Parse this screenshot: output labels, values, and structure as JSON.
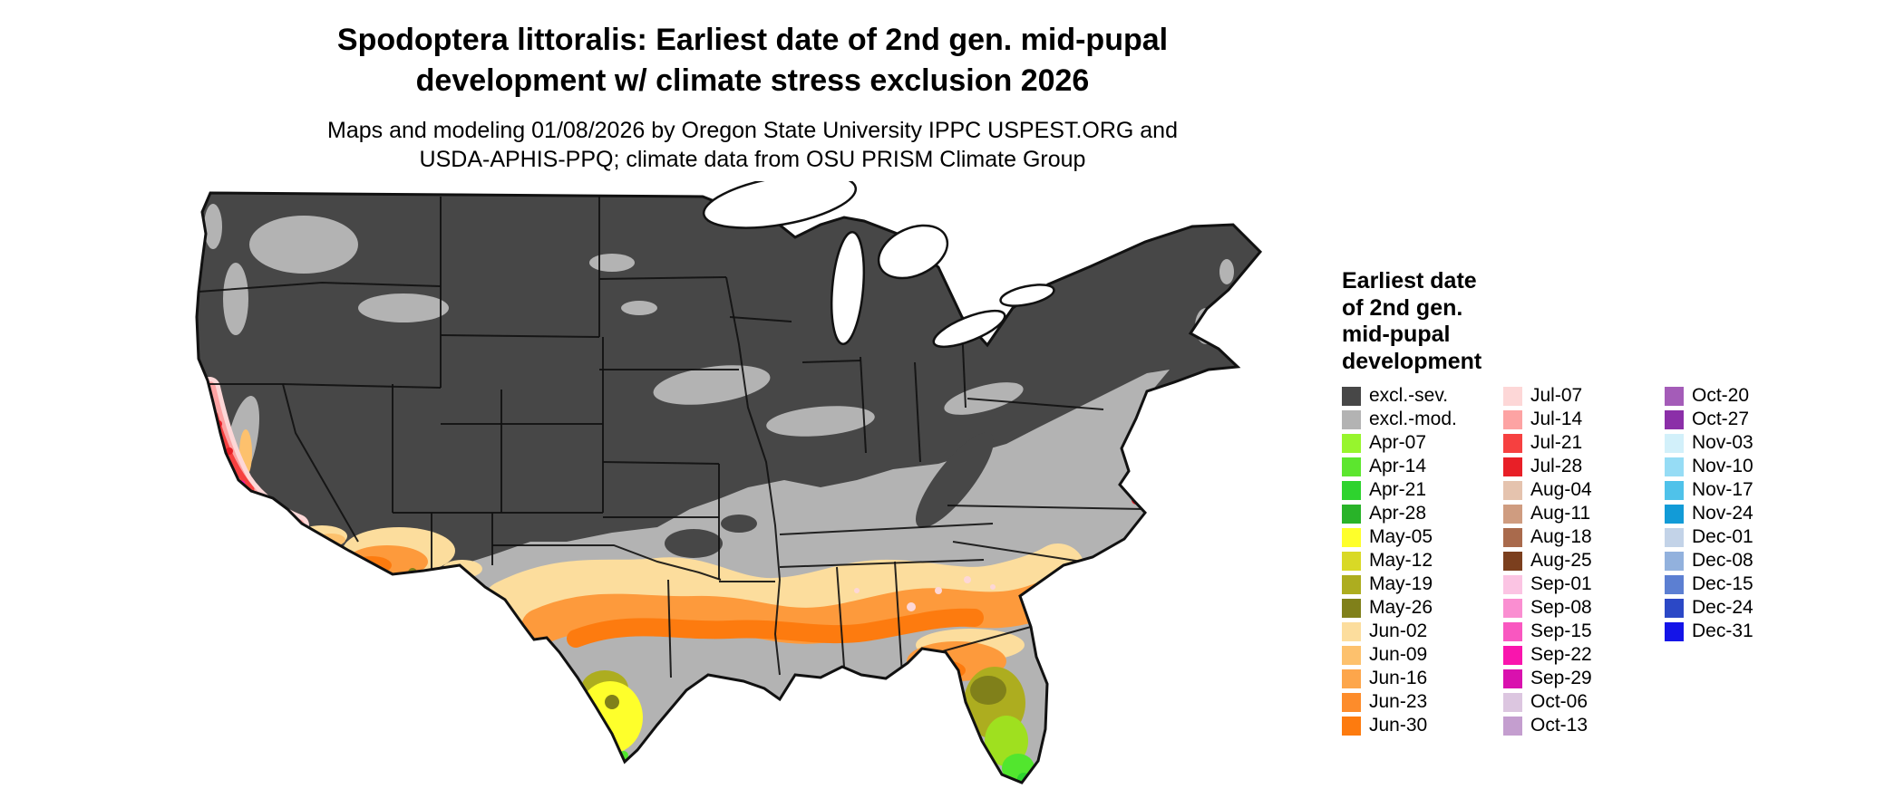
{
  "title": {
    "line1": "Spodoptera littoralis: Earliest date of 2nd gen. mid-pupal",
    "line2": "development w/ climate stress exclusion 2026"
  },
  "subtitle": {
    "line1": "Maps and modeling 01/08/2026 by Oregon State University IPPC USPEST.ORG and",
    "line2": "USDA-APHIS-PPQ; climate data from OSU PRISM Climate Group"
  },
  "legend": {
    "title_lines": [
      "Earliest date",
      "of 2nd gen.",
      "mid-pupal",
      "development"
    ],
    "columns": [
      {
        "items": [
          {
            "label": "excl.-sev.",
            "color": "#474747"
          },
          {
            "label": "excl.-mod.",
            "color": "#b3b3b3"
          },
          {
            "label": "Apr-07",
            "color": "#97f52d"
          },
          {
            "label": "Apr-14",
            "color": "#5ce62e"
          },
          {
            "label": "Apr-21",
            "color": "#2ed32e"
          },
          {
            "label": "Apr-28",
            "color": "#29b329"
          },
          {
            "label": "May-05",
            "color": "#feff2b"
          },
          {
            "label": "May-12",
            "color": "#d9d926"
          },
          {
            "label": "May-19",
            "color": "#adad1f"
          },
          {
            "label": "May-26",
            "color": "#80801a"
          },
          {
            "label": "Jun-02",
            "color": "#fcdd9d"
          },
          {
            "label": "Jun-09",
            "color": "#fdc16d"
          },
          {
            "label": "Jun-16",
            "color": "#fda64b"
          },
          {
            "label": "Jun-23",
            "color": "#fd8c2b"
          },
          {
            "label": "Jun-30",
            "color": "#fd7b0f"
          }
        ]
      },
      {
        "items": [
          {
            "label": "Jul-07",
            "color": "#fdd7d7"
          },
          {
            "label": "Jul-14",
            "color": "#fda3a3"
          },
          {
            "label": "Jul-21",
            "color": "#f64040"
          },
          {
            "label": "Jul-28",
            "color": "#e81f27"
          },
          {
            "label": "Aug-04",
            "color": "#e5c3ae"
          },
          {
            "label": "Aug-11",
            "color": "#cf9c80"
          },
          {
            "label": "Aug-18",
            "color": "#a96a4c"
          },
          {
            "label": "Aug-25",
            "color": "#7b3f1e"
          },
          {
            "label": "Sep-01",
            "color": "#fbc4e3"
          },
          {
            "label": "Sep-08",
            "color": "#fa8ed1"
          },
          {
            "label": "Sep-15",
            "color": "#f957c0"
          },
          {
            "label": "Sep-22",
            "color": "#f915ad"
          },
          {
            "label": "Sep-29",
            "color": "#d911ae"
          },
          {
            "label": "Oct-06",
            "color": "#dcc6e0"
          },
          {
            "label": "Oct-13",
            "color": "#c49ecf"
          }
        ]
      },
      {
        "items": [
          {
            "label": "Oct-20",
            "color": "#a45cb8"
          },
          {
            "label": "Oct-27",
            "color": "#8b2fa8"
          },
          {
            "label": "Nov-03",
            "color": "#d2f0fa"
          },
          {
            "label": "Nov-10",
            "color": "#96dcf5"
          },
          {
            "label": "Nov-17",
            "color": "#4fc2ea"
          },
          {
            "label": "Nov-24",
            "color": "#129bd7"
          },
          {
            "label": "Dec-01",
            "color": "#c3d3e8"
          },
          {
            "label": "Dec-08",
            "color": "#92b1dd"
          },
          {
            "label": "Dec-15",
            "color": "#5c7fd2"
          },
          {
            "label": "Dec-24",
            "color": "#2b48c6"
          },
          {
            "label": "Dec-31",
            "color": "#1414e8"
          }
        ]
      }
    ]
  },
  "map": {
    "colors": {
      "sev": "#474747",
      "mod": "#b3b3b3",
      "tan": "#fcdd9d",
      "tan2": "#fdc16d",
      "orange": "#fd9a3c",
      "deeporange": "#fd7b0f",
      "yellow": "#feff2b",
      "yellowgreen": "#9fe01f",
      "olive": "#adad1f",
      "darkolive": "#80801a",
      "green": "#52e62e",
      "brightgreen": "#2ed32e",
      "palepink": "#fdd7d7",
      "pink": "#fda3a3",
      "red": "#f64040",
      "crimson": "#e81f27",
      "magenta": "#f915ad",
      "purple": "#a45cb8",
      "border": "#111111",
      "lake": "#ffffff"
    }
  }
}
